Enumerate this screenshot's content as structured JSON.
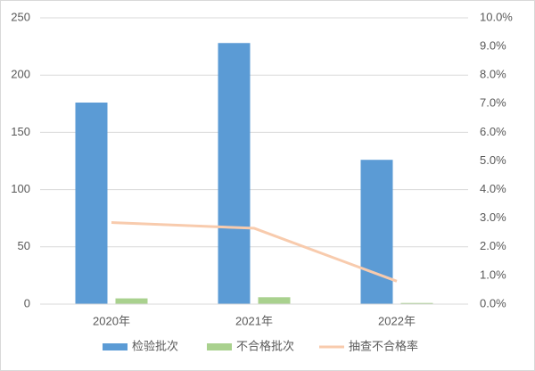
{
  "chart_data": {
    "type": "bar-line",
    "categories": [
      "2020年",
      "2021年",
      "2022年"
    ],
    "series": [
      {
        "name": "检验批次",
        "color": "#5b9bd5",
        "type": "bar",
        "values": [
          176,
          228,
          126
        ]
      },
      {
        "name": "不合格批次",
        "color": "#a9d18e",
        "type": "bar",
        "values": [
          5,
          6,
          1
        ]
      },
      {
        "name": "抽查不合格率",
        "color": "#f8cbad",
        "type": "line",
        "axis": "y2",
        "values": [
          2.85,
          2.65,
          0.8
        ]
      }
    ],
    "ylim": [
      0,
      250
    ],
    "yticks": [
      0,
      50,
      100,
      150,
      200,
      250
    ],
    "y2lim": [
      0,
      10
    ],
    "y2ticks": [
      {
        "value": 0,
        "label": "0.0%"
      },
      {
        "value": 1,
        "label": "1.0%"
      },
      {
        "value": 2,
        "label": "2.0%"
      },
      {
        "value": 3,
        "label": "3.0%"
      },
      {
        "value": 4,
        "label": "4.0%"
      },
      {
        "value": 5,
        "label": "5.0%"
      },
      {
        "value": 6,
        "label": "6.0%"
      },
      {
        "value": 7,
        "label": "7.0%"
      },
      {
        "value": 8,
        "label": "8.0%"
      },
      {
        "value": 9,
        "label": "9.0%"
      },
      {
        "value": 10,
        "label": "10.0%"
      }
    ],
    "grid": true,
    "legend": "bottom"
  }
}
